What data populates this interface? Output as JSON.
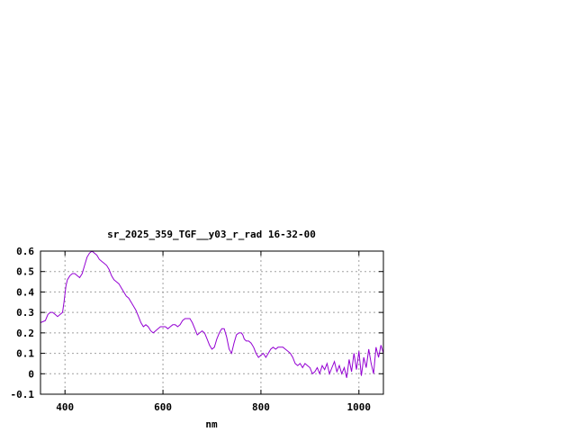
{
  "chart_data": {
    "type": "line",
    "title": "sr_2025_359_TGF__y03_r_rad 16-32-00",
    "xlabel": "nm",
    "ylabel": "",
    "xlim": [
      350,
      1050
    ],
    "ylim": [
      -0.1,
      0.6
    ],
    "x_ticks": [
      400,
      600,
      800,
      1000
    ],
    "y_ticks": [
      -0.1,
      0,
      0.1,
      0.2,
      0.3,
      0.4,
      0.5,
      0.6
    ],
    "x_tick_labels": [
      "400",
      "600",
      "800",
      "1000"
    ],
    "y_tick_labels": [
      "-0.1",
      "0",
      "0.1",
      "0.2",
      "0.3",
      "0.4",
      "0.5",
      "0.6"
    ],
    "grid": true,
    "line_color": "#9400d3",
    "series": [
      {
        "x": [
          350,
          360,
          365,
          370,
          375,
          380,
          385,
          390,
          395,
          398,
          402,
          405,
          410,
          415,
          420,
          425,
          430,
          435,
          440,
          445,
          450,
          455,
          460,
          465,
          470,
          475,
          480,
          485,
          490,
          495,
          500,
          505,
          510,
          515,
          520,
          525,
          530,
          535,
          540,
          545,
          550,
          555,
          560,
          565,
          570,
          575,
          580,
          585,
          590,
          595,
          600,
          605,
          610,
          615,
          620,
          625,
          630,
          635,
          640,
          645,
          650,
          655,
          660,
          665,
          670,
          675,
          680,
          685,
          690,
          695,
          700,
          705,
          710,
          715,
          720,
          725,
          730,
          735,
          740,
          745,
          750,
          755,
          760,
          763,
          766,
          770,
          775,
          780,
          785,
          790,
          795,
          800,
          805,
          810,
          815,
          820,
          825,
          830,
          835,
          840,
          845,
          850,
          855,
          860,
          865,
          870,
          875,
          880,
          885,
          890,
          895,
          900,
          905,
          910,
          915,
          920,
          925,
          930,
          935,
          940,
          945,
          950,
          955,
          960,
          965,
          970,
          975,
          980,
          985,
          990,
          995,
          1000,
          1005,
          1010,
          1015,
          1020,
          1025,
          1030,
          1035,
          1040,
          1045,
          1050
        ],
        "y": [
          0.25,
          0.26,
          0.29,
          0.3,
          0.3,
          0.29,
          0.28,
          0.29,
          0.3,
          0.35,
          0.43,
          0.46,
          0.48,
          0.49,
          0.49,
          0.48,
          0.47,
          0.49,
          0.53,
          0.57,
          0.59,
          0.6,
          0.59,
          0.58,
          0.56,
          0.55,
          0.54,
          0.53,
          0.51,
          0.48,
          0.46,
          0.45,
          0.44,
          0.42,
          0.4,
          0.38,
          0.37,
          0.35,
          0.33,
          0.31,
          0.28,
          0.25,
          0.23,
          0.24,
          0.23,
          0.21,
          0.2,
          0.21,
          0.22,
          0.23,
          0.23,
          0.23,
          0.22,
          0.23,
          0.24,
          0.24,
          0.23,
          0.24,
          0.26,
          0.27,
          0.27,
          0.27,
          0.25,
          0.22,
          0.19,
          0.2,
          0.21,
          0.2,
          0.17,
          0.14,
          0.12,
          0.13,
          0.17,
          0.2,
          0.22,
          0.22,
          0.18,
          0.12,
          0.1,
          0.15,
          0.19,
          0.2,
          0.2,
          0.19,
          0.17,
          0.16,
          0.16,
          0.15,
          0.13,
          0.1,
          0.08,
          0.09,
          0.1,
          0.08,
          0.1,
          0.12,
          0.13,
          0.12,
          0.13,
          0.13,
          0.13,
          0.12,
          0.11,
          0.1,
          0.08,
          0.05,
          0.04,
          0.05,
          0.03,
          0.05,
          0.04,
          0.03,
          0.0,
          0.01,
          0.03,
          0.0,
          0.04,
          0.02,
          0.05,
          0.0,
          0.03,
          0.06,
          0.01,
          0.04,
          0.0,
          0.03,
          -0.02,
          0.07,
          0.01,
          0.1,
          0.02,
          0.11,
          -0.01,
          0.08,
          0.03,
          0.12,
          0.05,
          0.0,
          0.13,
          0.08,
          0.14,
          0.1
        ]
      }
    ]
  }
}
